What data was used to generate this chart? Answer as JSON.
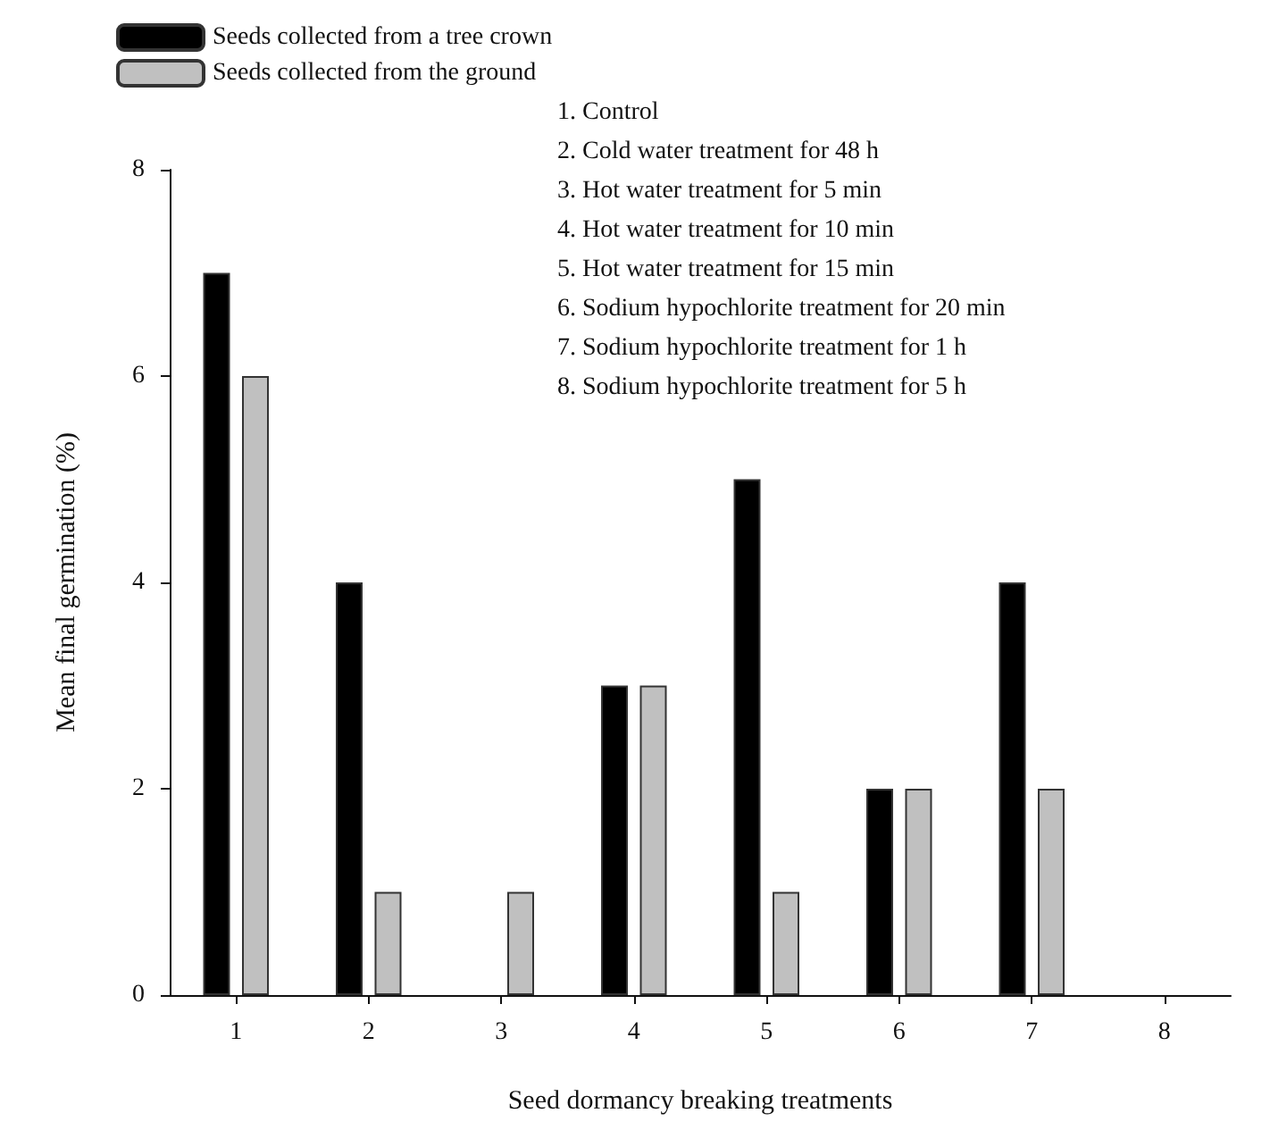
{
  "chart_data": {
    "type": "bar",
    "xlabel": "Seed dormancy breaking treatments",
    "ylabel": "Mean final germination (%)",
    "categories": [
      "1",
      "2",
      "3",
      "4",
      "5",
      "6",
      "7",
      "8"
    ],
    "series": [
      {
        "name": "Seeds collected from a tree crown",
        "color": "#000000",
        "values": [
          7,
          4,
          0,
          3,
          5,
          2,
          4,
          0
        ]
      },
      {
        "name": "Seeds collected from the ground",
        "color": "#c0c0c0",
        "values": [
          6,
          1,
          1,
          3,
          1,
          2,
          2,
          0
        ]
      }
    ],
    "ylim": [
      0,
      8
    ],
    "yticks": [
      0,
      2,
      4,
      6,
      8
    ],
    "grid": false,
    "legend": "top left",
    "annotations": [
      "1. Control",
      "2. Cold water treatment for 48 h",
      "3. Hot water treatment for 5 min",
      "4. Hot water treatment for 10 min",
      "5. Hot water treatment for 15 min",
      "6. Sodium hypochlorite treatment for 20 min",
      "7. Sodium hypochlorite treatment for 1 h",
      "8. Sodium hypochlorite treatment for 5 h"
    ]
  }
}
